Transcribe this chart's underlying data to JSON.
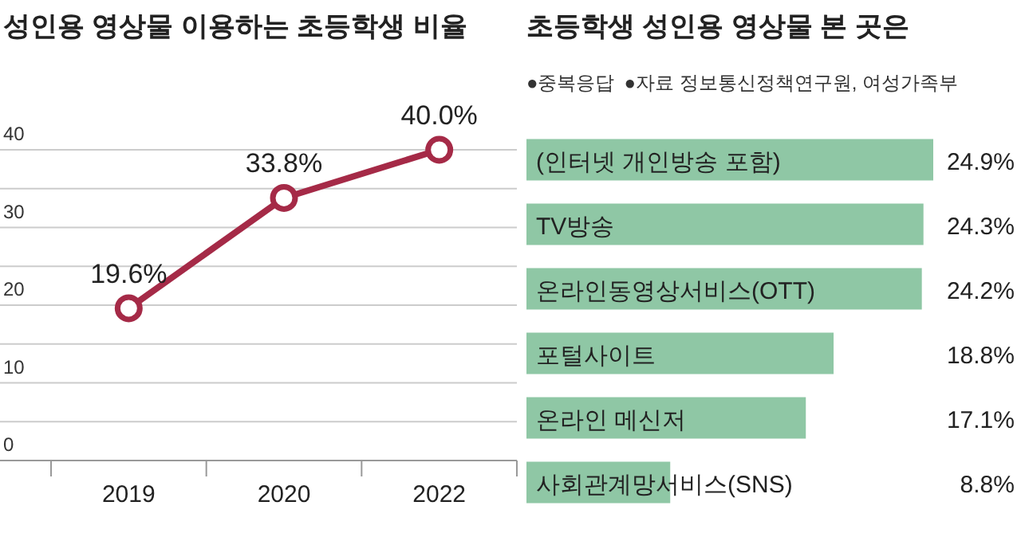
{
  "chart_data": [
    {
      "type": "line",
      "title": "성인용 영상물 이용하는 초등학생 비율",
      "categories": [
        "2019",
        "2020",
        "2022"
      ],
      "series": [
        {
          "color": "#a52a47",
          "values": [
            19.6,
            33.8,
            40.0
          ],
          "value_labels": [
            "19.6%",
            "33.8%",
            "40.0%"
          ]
        }
      ],
      "ylim": [
        0,
        40
      ],
      "yticks": [
        0,
        {
          "value": 5,
          "label": null
        },
        10,
        {
          "value": 15,
          "label": null
        },
        20,
        {
          "value": 25,
          "label": null
        },
        30,
        {
          "value": 35,
          "label": null
        },
        40
      ],
      "grid": "y",
      "marker": "circle",
      "line_style": "solid"
    },
    {
      "type": "bar",
      "orientation": "horizontal",
      "title": "초등학생 성인용 영상물 본 곳은",
      "annotations": [
        "●중복응답",
        "●자료 정보통신정책연구원, 여성가족부"
      ],
      "categories": [
        "(인터넷 개인방송 포함)",
        "TV방송",
        "온라인동영상서비스(OTT)",
        "포털사이트",
        "온라인 메신저",
        "사회관계망서비스(SNS)"
      ],
      "values": [
        24.9,
        24.3,
        24.2,
        18.8,
        17.1,
        8.8
      ],
      "color": "#8fc7a5",
      "value_labels": [
        "24.9%",
        "24.3%",
        "24.2%",
        "18.8%",
        "17.1%",
        "8.8%"
      ],
      "tick_labels": "y"
    }
  ]
}
